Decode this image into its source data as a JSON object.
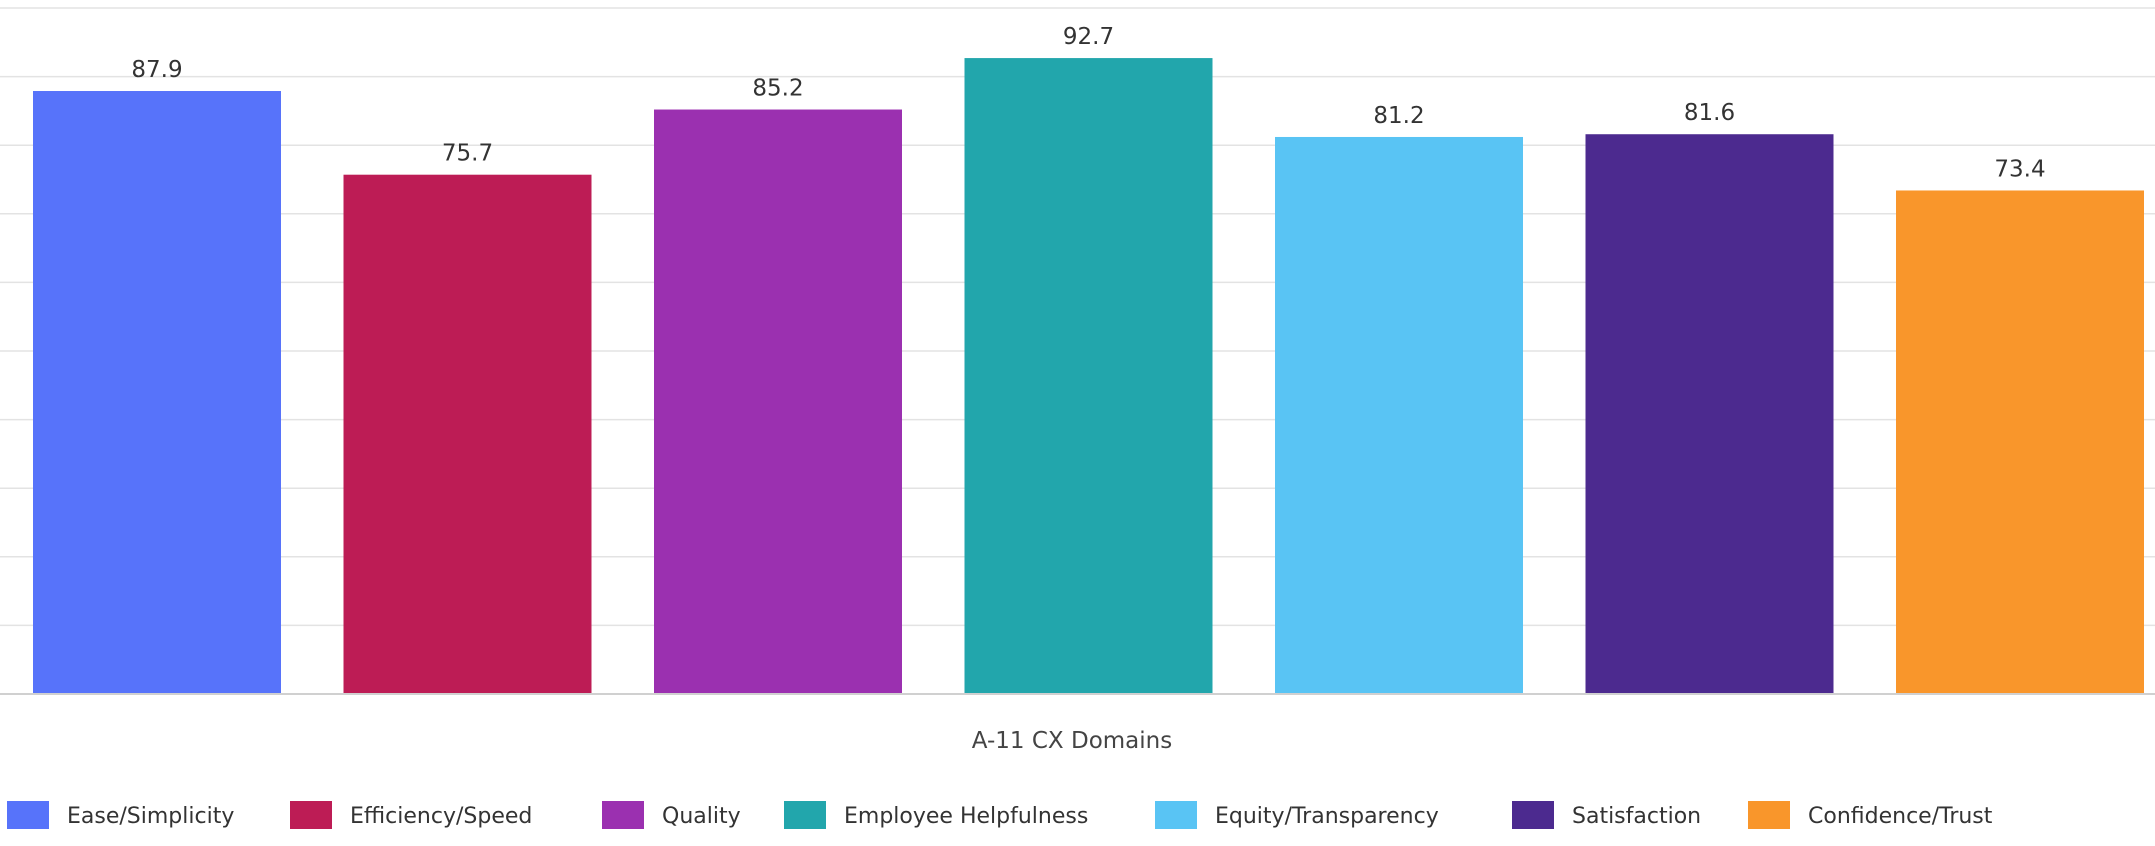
{
  "chart_data": {
    "type": "bar",
    "title": "",
    "xlabel": "A-11 CX Domains",
    "ylabel": "",
    "ylim": [
      0,
      100
    ],
    "grid": true,
    "legend_position": "bottom",
    "categories": [
      "Ease/Simplicity",
      "Efficiency/Speed",
      "Quality",
      "Employee Helpfulness",
      "Equity/Transparency",
      "Satisfaction",
      "Confidence/Trust"
    ],
    "values": [
      87.9,
      75.7,
      85.2,
      92.7,
      81.2,
      81.6,
      73.4
    ],
    "value_labels": [
      "87.9",
      "75.7",
      "85.2",
      "92.7",
      "81.2",
      "81.6",
      "73.4"
    ],
    "colors": [
      "#5773fa",
      "#bd1c55",
      "#9b30b0",
      "#22a6ac",
      "#59c4f4",
      "#4c2a8f",
      "#f9962b"
    ]
  }
}
